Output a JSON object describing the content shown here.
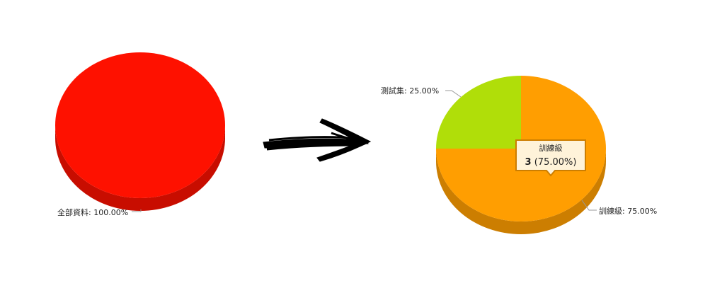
{
  "chart_data": [
    {
      "type": "pie",
      "style": "3d",
      "slices": [
        {
          "name": "全部資料",
          "value": 100.0,
          "label": "全部資料: 100.00%",
          "color": "#fe1100",
          "side_color": "#c80d00"
        }
      ]
    },
    {
      "type": "pie",
      "style": "3d",
      "slices": [
        {
          "name": "測試集",
          "value": 25.0,
          "label": "測試集: 25.00%",
          "color": "#b0de09",
          "side_color": "#8cb207"
        },
        {
          "name": "訓練級",
          "value": 75.0,
          "label": "訓練級: 75.00%",
          "color": "#ff9e01",
          "side_color": "#cc7e01"
        }
      ],
      "tooltip": {
        "title": "訓練級",
        "count": "3",
        "percent": "(75.00%)"
      }
    }
  ],
  "arrow": {
    "icon": "right-arrow-icon",
    "color": "#000000"
  }
}
